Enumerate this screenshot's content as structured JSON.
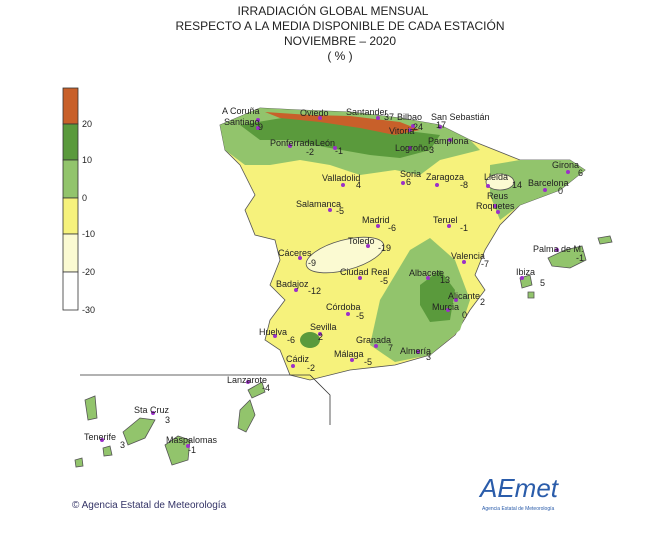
{
  "title": {
    "line1": "IRRADIACIÓN  GLOBAL MENSUAL",
    "line2": "RESPECTO  A LA MEDIA DISPONIBLE DE CADA ESTACIÓN",
    "line3": "NOVIEMBRE  – 2020",
    "line4": "( % )"
  },
  "legend": {
    "ticks": [
      20,
      10,
      0,
      -10,
      -20,
      -30
    ]
  },
  "stations": [
    {
      "name": "A Coruña"
    },
    {
      "name": "Santiago",
      "value": 9
    },
    {
      "name": "Oviedo"
    },
    {
      "name": "Santander",
      "value": 37
    },
    {
      "name": "Bilbao",
      "value": 24
    },
    {
      "name": "San Sebastián",
      "value": 17
    },
    {
      "name": "Vitoria"
    },
    {
      "name": "Pamplona"
    },
    {
      "name": "Logroño",
      "value": -3
    },
    {
      "name": "Ponferrada",
      "value": -2
    },
    {
      "name": "León",
      "value": -1
    },
    {
      "name": "Soria",
      "value": 6
    },
    {
      "name": "Zaragoza",
      "value": -8
    },
    {
      "name": "Lleida",
      "value": 14
    },
    {
      "name": "Girona",
      "value": 6
    },
    {
      "name": "Barcelona",
      "value": 0
    },
    {
      "name": "Valladolid",
      "value": 4
    },
    {
      "name": "Salamanca",
      "value": -5
    },
    {
      "name": "Reus",
      "value": 4
    },
    {
      "name": "Roquetes"
    },
    {
      "name": "Madrid",
      "value": -6
    },
    {
      "name": "Teruel",
      "value": -1
    },
    {
      "name": "Toledo",
      "value": -19
    },
    {
      "name": "Palma de M.",
      "value": -1
    },
    {
      "name": "Cáceres",
      "value": -9
    },
    {
      "name": "Valencia",
      "value": -7
    },
    {
      "name": "Ciudad Real",
      "value": -5
    },
    {
      "name": "Albacete",
      "value": 13
    },
    {
      "name": "Ibiza",
      "value": 5
    },
    {
      "name": "Badajoz",
      "value": -12
    },
    {
      "name": "Alicante",
      "value": 2
    },
    {
      "name": "Murcia",
      "value": 0
    },
    {
      "name": "Córdoba",
      "value": -5
    },
    {
      "name": "Huelva",
      "value": -6
    },
    {
      "name": "Sevilla",
      "value": 2
    },
    {
      "name": "Granada",
      "value": 7
    },
    {
      "name": "Almería",
      "value": 3
    },
    {
      "name": "Málaga",
      "value": -5
    },
    {
      "name": "Cádiz",
      "value": -2
    },
    {
      "name": "Lanzarote",
      "value": -4
    },
    {
      "name": "Sta Cruz",
      "value": 3
    },
    {
      "name": "Tenerife",
      "value": 3
    },
    {
      "name": "Maspalomas",
      "value": -1
    }
  ],
  "footer": {
    "credit": "© Agencia Estatal de Meteorología",
    "logo": "AEmet",
    "logo_caption": "Agencia Estatal de Meteorología"
  }
}
